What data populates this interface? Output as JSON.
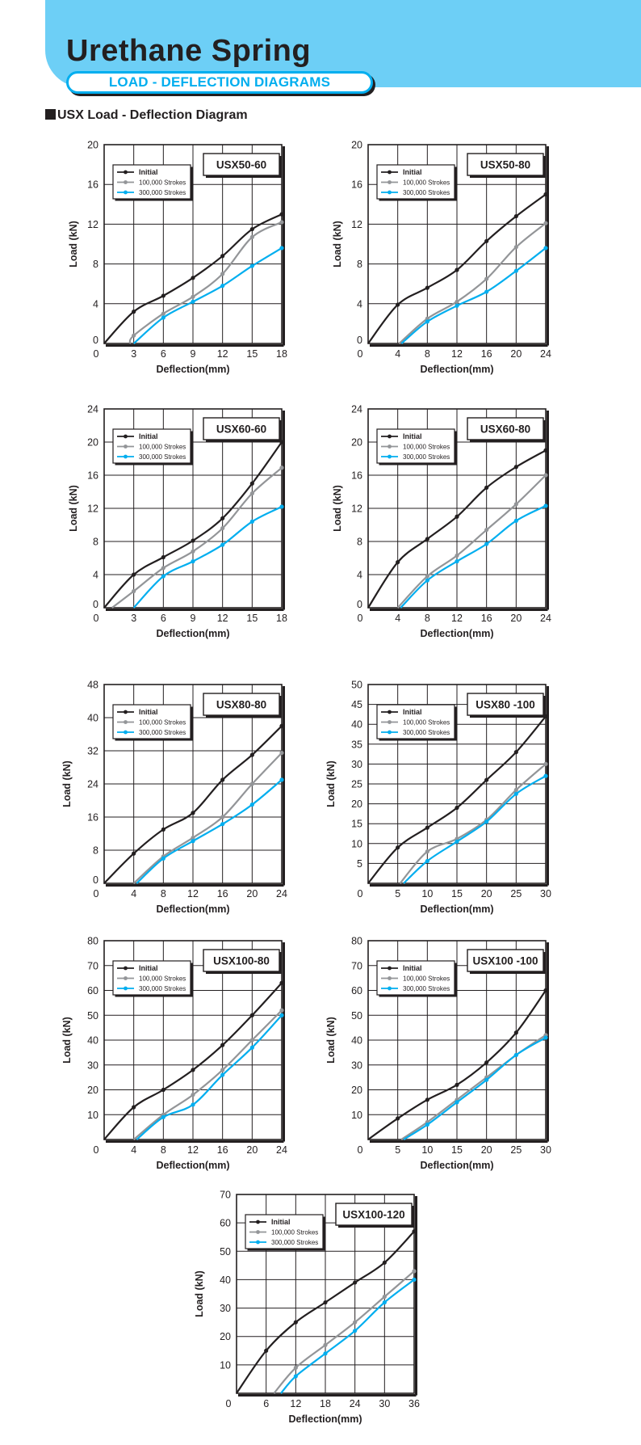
{
  "header": {
    "title": "Urethane Spring",
    "subtitle": "LOAD - DEFLECTION DIAGRAMS"
  },
  "section": {
    "heading": "USX Load - Deflection Diagram"
  },
  "colors": {
    "initial": "#231f20",
    "strokes_100k": "#939598",
    "strokes_300k": "#00aeef",
    "header_band": "#6dcff6",
    "accent": "#00aeef"
  },
  "chart_data": [
    {
      "type": "line",
      "title": "USX50-60",
      "xlabel": "Deflection(mm)",
      "ylabel": "Load (kN)",
      "xlim": [
        0,
        18
      ],
      "ylim": [
        0,
        20
      ],
      "xticks": [
        0,
        3,
        6,
        9,
        12,
        15,
        18
      ],
      "yticks": [
        0,
        4,
        8,
        12,
        16,
        20
      ],
      "grid": true,
      "legend": "top-left",
      "series": [
        {
          "name": "Initial",
          "color": "#231f20",
          "points": [
            [
              0,
              0
            ],
            [
              3,
              3.2
            ],
            [
              6,
              4.8
            ],
            [
              9,
              6.6
            ],
            [
              12,
              8.8
            ],
            [
              15,
              11.5
            ],
            [
              18,
              13
            ]
          ]
        },
        {
          "name": "100,000 Strokes",
          "color": "#939598",
          "points": [
            [
              2.6,
              0
            ],
            [
              3,
              0.8
            ],
            [
              6,
              3
            ],
            [
              9,
              4.7
            ],
            [
              12,
              7
            ],
            [
              15,
              10.7
            ],
            [
              18,
              12.2
            ]
          ]
        },
        {
          "name": "300,000 Strokes",
          "color": "#00aeef",
          "points": [
            [
              3,
              0
            ],
            [
              6,
              2.6
            ],
            [
              9,
              4.2
            ],
            [
              12,
              5.8
            ],
            [
              15,
              7.8
            ],
            [
              18,
              9.6
            ]
          ]
        }
      ]
    },
    {
      "type": "line",
      "title": "USX50-80",
      "xlabel": "Deflection(mm)",
      "ylabel": "Load (kN)",
      "xlim": [
        0,
        24
      ],
      "ylim": [
        0,
        20
      ],
      "xticks": [
        0,
        4,
        8,
        12,
        16,
        20,
        24
      ],
      "yticks": [
        0,
        4,
        8,
        12,
        16,
        20
      ],
      "grid": true,
      "legend": "top-left",
      "series": [
        {
          "name": "Initial",
          "color": "#231f20",
          "points": [
            [
              0,
              0
            ],
            [
              4,
              3.9
            ],
            [
              8,
              5.6
            ],
            [
              12,
              7.4
            ],
            [
              16,
              10.3
            ],
            [
              20,
              12.8
            ],
            [
              24,
              15
            ]
          ]
        },
        {
          "name": "100,000 Strokes",
          "color": "#939598",
          "points": [
            [
              4.2,
              0
            ],
            [
              8,
              2.5
            ],
            [
              12,
              4.2
            ],
            [
              16,
              6.5
            ],
            [
              20,
              9.7
            ],
            [
              24,
              12.1
            ]
          ]
        },
        {
          "name": "300,000 Strokes",
          "color": "#00aeef",
          "points": [
            [
              4.5,
              0
            ],
            [
              8,
              2.2
            ],
            [
              12,
              3.8
            ],
            [
              16,
              5.2
            ],
            [
              20,
              7.3
            ],
            [
              24,
              9.6
            ]
          ]
        }
      ]
    },
    {
      "type": "line",
      "title": "USX60-60",
      "xlabel": "Deflection(mm)",
      "ylabel": "Load (kN)",
      "xlim": [
        0,
        18
      ],
      "ylim": [
        0,
        24
      ],
      "xticks": [
        0,
        3,
        6,
        9,
        12,
        15,
        18
      ],
      "yticks": [
        0,
        4,
        8,
        12,
        16,
        20,
        24
      ],
      "grid": true,
      "legend": "top-left",
      "series": [
        {
          "name": "Initial",
          "color": "#231f20",
          "points": [
            [
              0,
              0
            ],
            [
              3,
              4
            ],
            [
              6,
              6.1
            ],
            [
              9,
              8.1
            ],
            [
              12,
              10.8
            ],
            [
              15,
              15
            ],
            [
              18,
              20
            ]
          ]
        },
        {
          "name": "100,000 Strokes",
          "color": "#939598",
          "points": [
            [
              0.8,
              0
            ],
            [
              3,
              2
            ],
            [
              6,
              4.8
            ],
            [
              9,
              6.8
            ],
            [
              12,
              9.6
            ],
            [
              15,
              13.8
            ],
            [
              18,
              16.9
            ]
          ]
        },
        {
          "name": "300,000 Strokes",
          "color": "#00aeef",
          "points": [
            [
              3,
              0
            ],
            [
              6,
              3.8
            ],
            [
              9,
              5.6
            ],
            [
              12,
              7.6
            ],
            [
              15,
              10.4
            ],
            [
              18,
              12.2
            ]
          ]
        }
      ]
    },
    {
      "type": "line",
      "title": "USX60-80",
      "xlabel": "Deflection(mm)",
      "ylabel": "Load (kN)",
      "xlim": [
        0,
        24
      ],
      "ylim": [
        0,
        24
      ],
      "xticks": [
        0,
        4,
        8,
        12,
        16,
        20,
        24
      ],
      "yticks": [
        0,
        4,
        8,
        12,
        16,
        20,
        24
      ],
      "grid": true,
      "legend": "top-left",
      "series": [
        {
          "name": "Initial",
          "color": "#231f20",
          "points": [
            [
              0,
              0
            ],
            [
              4,
              5.5
            ],
            [
              8,
              8.3
            ],
            [
              12,
              11
            ],
            [
              16,
              14.5
            ],
            [
              20,
              17
            ],
            [
              24,
              19
            ]
          ]
        },
        {
          "name": "100,000 Strokes",
          "color": "#939598",
          "points": [
            [
              4,
              0
            ],
            [
              8,
              3.8
            ],
            [
              12,
              6.3
            ],
            [
              16,
              9.4
            ],
            [
              20,
              12.5
            ],
            [
              24,
              16
            ]
          ]
        },
        {
          "name": "300,000 Strokes",
          "color": "#00aeef",
          "points": [
            [
              4.4,
              0
            ],
            [
              8,
              3.3
            ],
            [
              12,
              5.6
            ],
            [
              16,
              7.7
            ],
            [
              20,
              10.5
            ],
            [
              24,
              12.3
            ]
          ]
        }
      ]
    },
    {
      "type": "line",
      "title": "USX80-80",
      "xlabel": "Deflection(mm)",
      "ylabel": "Load (kN)",
      "xlim": [
        0,
        24
      ],
      "ylim": [
        0,
        48
      ],
      "xticks": [
        0,
        4,
        8,
        12,
        16,
        20,
        24
      ],
      "yticks": [
        0,
        8,
        16,
        24,
        32,
        40,
        48
      ],
      "grid": true,
      "legend": "top-left",
      "series": [
        {
          "name": "Initial",
          "color": "#231f20",
          "points": [
            [
              0,
              0
            ],
            [
              4,
              7.2
            ],
            [
              8,
              13
            ],
            [
              12,
              17
            ],
            [
              16,
              25
            ],
            [
              20,
              31
            ],
            [
              24,
              38
            ]
          ]
        },
        {
          "name": "100,000 Strokes",
          "color": "#939598",
          "points": [
            [
              4,
              0
            ],
            [
              8,
              6.5
            ],
            [
              12,
              11
            ],
            [
              16,
              16
            ],
            [
              20,
              24
            ],
            [
              24,
              31.5
            ]
          ]
        },
        {
          "name": "300,000 Strokes",
          "color": "#00aeef",
          "points": [
            [
              4.4,
              0
            ],
            [
              8,
              6
            ],
            [
              12,
              10.2
            ],
            [
              16,
              14.3
            ],
            [
              20,
              19
            ],
            [
              24,
              25
            ]
          ]
        }
      ]
    },
    {
      "type": "line",
      "title": "USX80 -100",
      "xlabel": "Deflection(mm)",
      "ylabel": "Load (kN)",
      "xlim": [
        0,
        30
      ],
      "ylim": [
        0,
        50
      ],
      "xticks": [
        0,
        5,
        10,
        15,
        20,
        25,
        30
      ],
      "yticks": [
        5,
        10,
        15,
        20,
        25,
        30,
        35,
        40,
        45,
        50
      ],
      "grid": true,
      "legend": "top-left",
      "series": [
        {
          "name": "Initial",
          "color": "#231f20",
          "points": [
            [
              0,
              0
            ],
            [
              5,
              9
            ],
            [
              10,
              14
            ],
            [
              15,
              19
            ],
            [
              20,
              26
            ],
            [
              25,
              33
            ],
            [
              30,
              42
            ]
          ]
        },
        {
          "name": "100,000 Strokes",
          "color": "#939598",
          "points": [
            [
              5.4,
              0
            ],
            [
              10,
              8
            ],
            [
              15,
              11.2
            ],
            [
              20,
              16
            ],
            [
              25,
              23.5
            ],
            [
              30,
              30
            ]
          ]
        },
        {
          "name": "300,000 Strokes",
          "color": "#00aeef",
          "points": [
            [
              6,
              0
            ],
            [
              10,
              5.6
            ],
            [
              15,
              10.5
            ],
            [
              20,
              15.5
            ],
            [
              25,
              22.5
            ],
            [
              30,
              27
            ]
          ]
        }
      ]
    },
    {
      "type": "line",
      "title": "USX100-80",
      "xlabel": "Deflection(mm)",
      "ylabel": "Load (kN)",
      "xlim": [
        0,
        24
      ],
      "ylim": [
        0,
        80
      ],
      "xticks": [
        0,
        4,
        8,
        12,
        16,
        20,
        24
      ],
      "yticks": [
        10,
        20,
        30,
        40,
        50,
        60,
        70,
        80
      ],
      "grid": true,
      "legend": "top-left",
      "series": [
        {
          "name": "Initial",
          "color": "#231f20",
          "points": [
            [
              0,
              0
            ],
            [
              4,
              13
            ],
            [
              8,
              20
            ],
            [
              12,
              28
            ],
            [
              16,
              38
            ],
            [
              20,
              50
            ],
            [
              24,
              63
            ]
          ]
        },
        {
          "name": "100,000 Strokes",
          "color": "#939598",
          "points": [
            [
              4,
              0
            ],
            [
              8,
              10
            ],
            [
              12,
              18
            ],
            [
              16,
              28
            ],
            [
              20,
              40
            ],
            [
              24,
              52
            ]
          ]
        },
        {
          "name": "300,000 Strokes",
          "color": "#00aeef",
          "points": [
            [
              4.4,
              0
            ],
            [
              8,
              9
            ],
            [
              12,
              14
            ],
            [
              16,
              26
            ],
            [
              20,
              37
            ],
            [
              24,
              50
            ]
          ]
        }
      ]
    },
    {
      "type": "line",
      "title": "USX100 -100",
      "xlabel": "Deflection(mm)",
      "ylabel": "Load (kN)",
      "xlim": [
        0,
        30
      ],
      "ylim": [
        0,
        80
      ],
      "xticks": [
        0,
        5,
        10,
        15,
        20,
        25,
        30
      ],
      "yticks": [
        10,
        20,
        30,
        40,
        50,
        60,
        70,
        80
      ],
      "grid": true,
      "legend": "top-left",
      "series": [
        {
          "name": "Initial",
          "color": "#231f20",
          "points": [
            [
              0,
              0
            ],
            [
              5,
              8.5
            ],
            [
              10,
              16
            ],
            [
              15,
              22
            ],
            [
              20,
              31
            ],
            [
              25,
              43
            ],
            [
              30,
              60
            ]
          ]
        },
        {
          "name": "100,000 Strokes",
          "color": "#939598",
          "points": [
            [
              5.6,
              0
            ],
            [
              10,
              7
            ],
            [
              15,
              16
            ],
            [
              20,
              25
            ],
            [
              25,
              34
            ],
            [
              30,
              42
            ]
          ]
        },
        {
          "name": "300,000 Strokes",
          "color": "#00aeef",
          "points": [
            [
              6,
              0
            ],
            [
              10,
              6
            ],
            [
              15,
              15
            ],
            [
              20,
              24
            ],
            [
              25,
              34
            ],
            [
              30,
              41
            ]
          ]
        }
      ]
    },
    {
      "type": "line",
      "title": "USX100-120",
      "xlabel": "Deflection(mm)",
      "ylabel": "Load (kN)",
      "xlim": [
        0,
        36
      ],
      "ylim": [
        0,
        70
      ],
      "xticks": [
        0,
        6,
        12,
        18,
        24,
        30,
        36
      ],
      "yticks": [
        10,
        20,
        30,
        40,
        50,
        60,
        70
      ],
      "grid": true,
      "legend": "top-left",
      "series": [
        {
          "name": "Initial",
          "color": "#231f20",
          "points": [
            [
              0,
              0
            ],
            [
              6,
              15
            ],
            [
              12,
              25
            ],
            [
              18,
              32
            ],
            [
              24,
              39
            ],
            [
              30,
              46
            ],
            [
              36,
              57
            ]
          ]
        },
        {
          "name": "100,000 Strokes",
          "color": "#939598",
          "points": [
            [
              7.6,
              0
            ],
            [
              12,
              9
            ],
            [
              18,
              17
            ],
            [
              24,
              25
            ],
            [
              30,
              34
            ],
            [
              36,
              43
            ]
          ]
        },
        {
          "name": "300,000 Strokes",
          "color": "#00aeef",
          "points": [
            [
              9,
              0
            ],
            [
              12,
              6
            ],
            [
              18,
              14
            ],
            [
              24,
              22
            ],
            [
              30,
              32
            ],
            [
              36,
              40
            ]
          ]
        }
      ]
    }
  ]
}
